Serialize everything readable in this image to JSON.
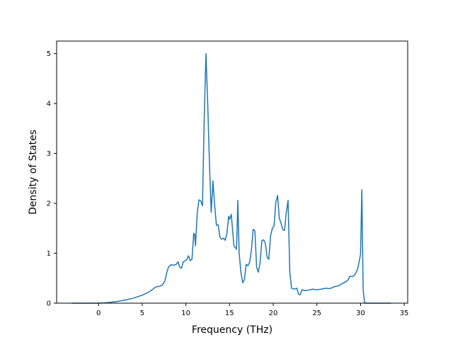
{
  "chart_data": {
    "type": "line",
    "title": "",
    "xlabel": "Frequency (THz)",
    "ylabel": "Density of States",
    "xlim": [
      -4.8,
      35.4
    ],
    "ylim": [
      0,
      5.25
    ],
    "xticks": [
      0,
      5,
      10,
      15,
      20,
      25,
      30,
      35
    ],
    "yticks": [
      0,
      1,
      2,
      3,
      4,
      5
    ],
    "grid": false,
    "series_color": "#1f77b4",
    "series": [
      {
        "x": [
          -3.1,
          -1.0,
          0.0,
          1.0,
          2.0,
          3.0,
          4.0,
          5.0,
          5.5,
          6.0,
          6.5,
          7.0,
          7.3,
          7.6,
          7.8,
          8.0,
          8.3,
          8.6,
          8.9,
          9.1,
          9.3,
          9.5,
          9.7,
          9.9,
          10.1,
          10.3,
          10.5,
          10.7,
          10.9,
          11.0,
          11.1,
          11.3,
          11.5,
          11.7,
          11.9,
          12.1,
          12.3,
          12.5,
          12.7,
          12.9,
          13.1,
          13.3,
          13.5,
          13.7,
          13.9,
          14.1,
          14.3,
          14.5,
          14.7,
          14.9,
          15.0,
          15.2,
          15.5,
          15.8,
          15.95,
          16.1,
          16.3,
          16.5,
          16.7,
          16.9,
          17.1,
          17.3,
          17.5,
          17.7,
          17.9,
          18.1,
          18.3,
          18.5,
          18.7,
          18.9,
          19.1,
          19.3,
          19.5,
          19.7,
          19.9,
          20.1,
          20.3,
          20.5,
          20.7,
          20.9,
          21.1,
          21.3,
          21.5,
          21.7,
          21.9,
          22.1,
          22.4,
          22.7,
          22.9,
          23.1,
          23.3,
          23.6,
          24.0,
          24.5,
          25.0,
          25.5,
          26.0,
          26.5,
          27.0,
          27.5,
          28.0,
          28.5,
          28.8,
          29.1,
          29.4,
          29.7,
          30.0,
          30.15,
          30.3,
          30.45,
          30.6,
          31.0,
          32.0,
          33.5
        ],
        "y": [
          0.0,
          0.0,
          0.0,
          0.01,
          0.03,
          0.06,
          0.1,
          0.16,
          0.2,
          0.25,
          0.32,
          0.34,
          0.36,
          0.45,
          0.6,
          0.72,
          0.77,
          0.76,
          0.78,
          0.83,
          0.72,
          0.7,
          0.83,
          0.85,
          0.87,
          0.95,
          0.85,
          0.88,
          1.4,
          1.38,
          1.15,
          1.8,
          2.07,
          2.05,
          1.95,
          3.7,
          5.0,
          4.0,
          2.8,
          1.82,
          2.45,
          1.95,
          1.56,
          1.57,
          1.32,
          1.28,
          1.3,
          1.26,
          1.4,
          1.74,
          1.68,
          1.78,
          1.15,
          1.08,
          2.06,
          1.0,
          0.62,
          0.41,
          0.47,
          0.78,
          0.75,
          0.82,
          1.05,
          1.48,
          1.45,
          0.72,
          0.62,
          0.82,
          1.25,
          1.27,
          1.2,
          0.92,
          0.88,
          1.35,
          1.5,
          1.55,
          2.02,
          2.16,
          1.7,
          1.6,
          1.47,
          1.46,
          1.82,
          2.06,
          0.62,
          0.3,
          0.28,
          0.3,
          0.18,
          0.17,
          0.27,
          0.25,
          0.26,
          0.28,
          0.27,
          0.28,
          0.3,
          0.29,
          0.33,
          0.35,
          0.4,
          0.45,
          0.54,
          0.53,
          0.58,
          0.7,
          0.98,
          2.27,
          0.27,
          0.02,
          0.0,
          0.0,
          0.0,
          0.0
        ]
      }
    ]
  }
}
